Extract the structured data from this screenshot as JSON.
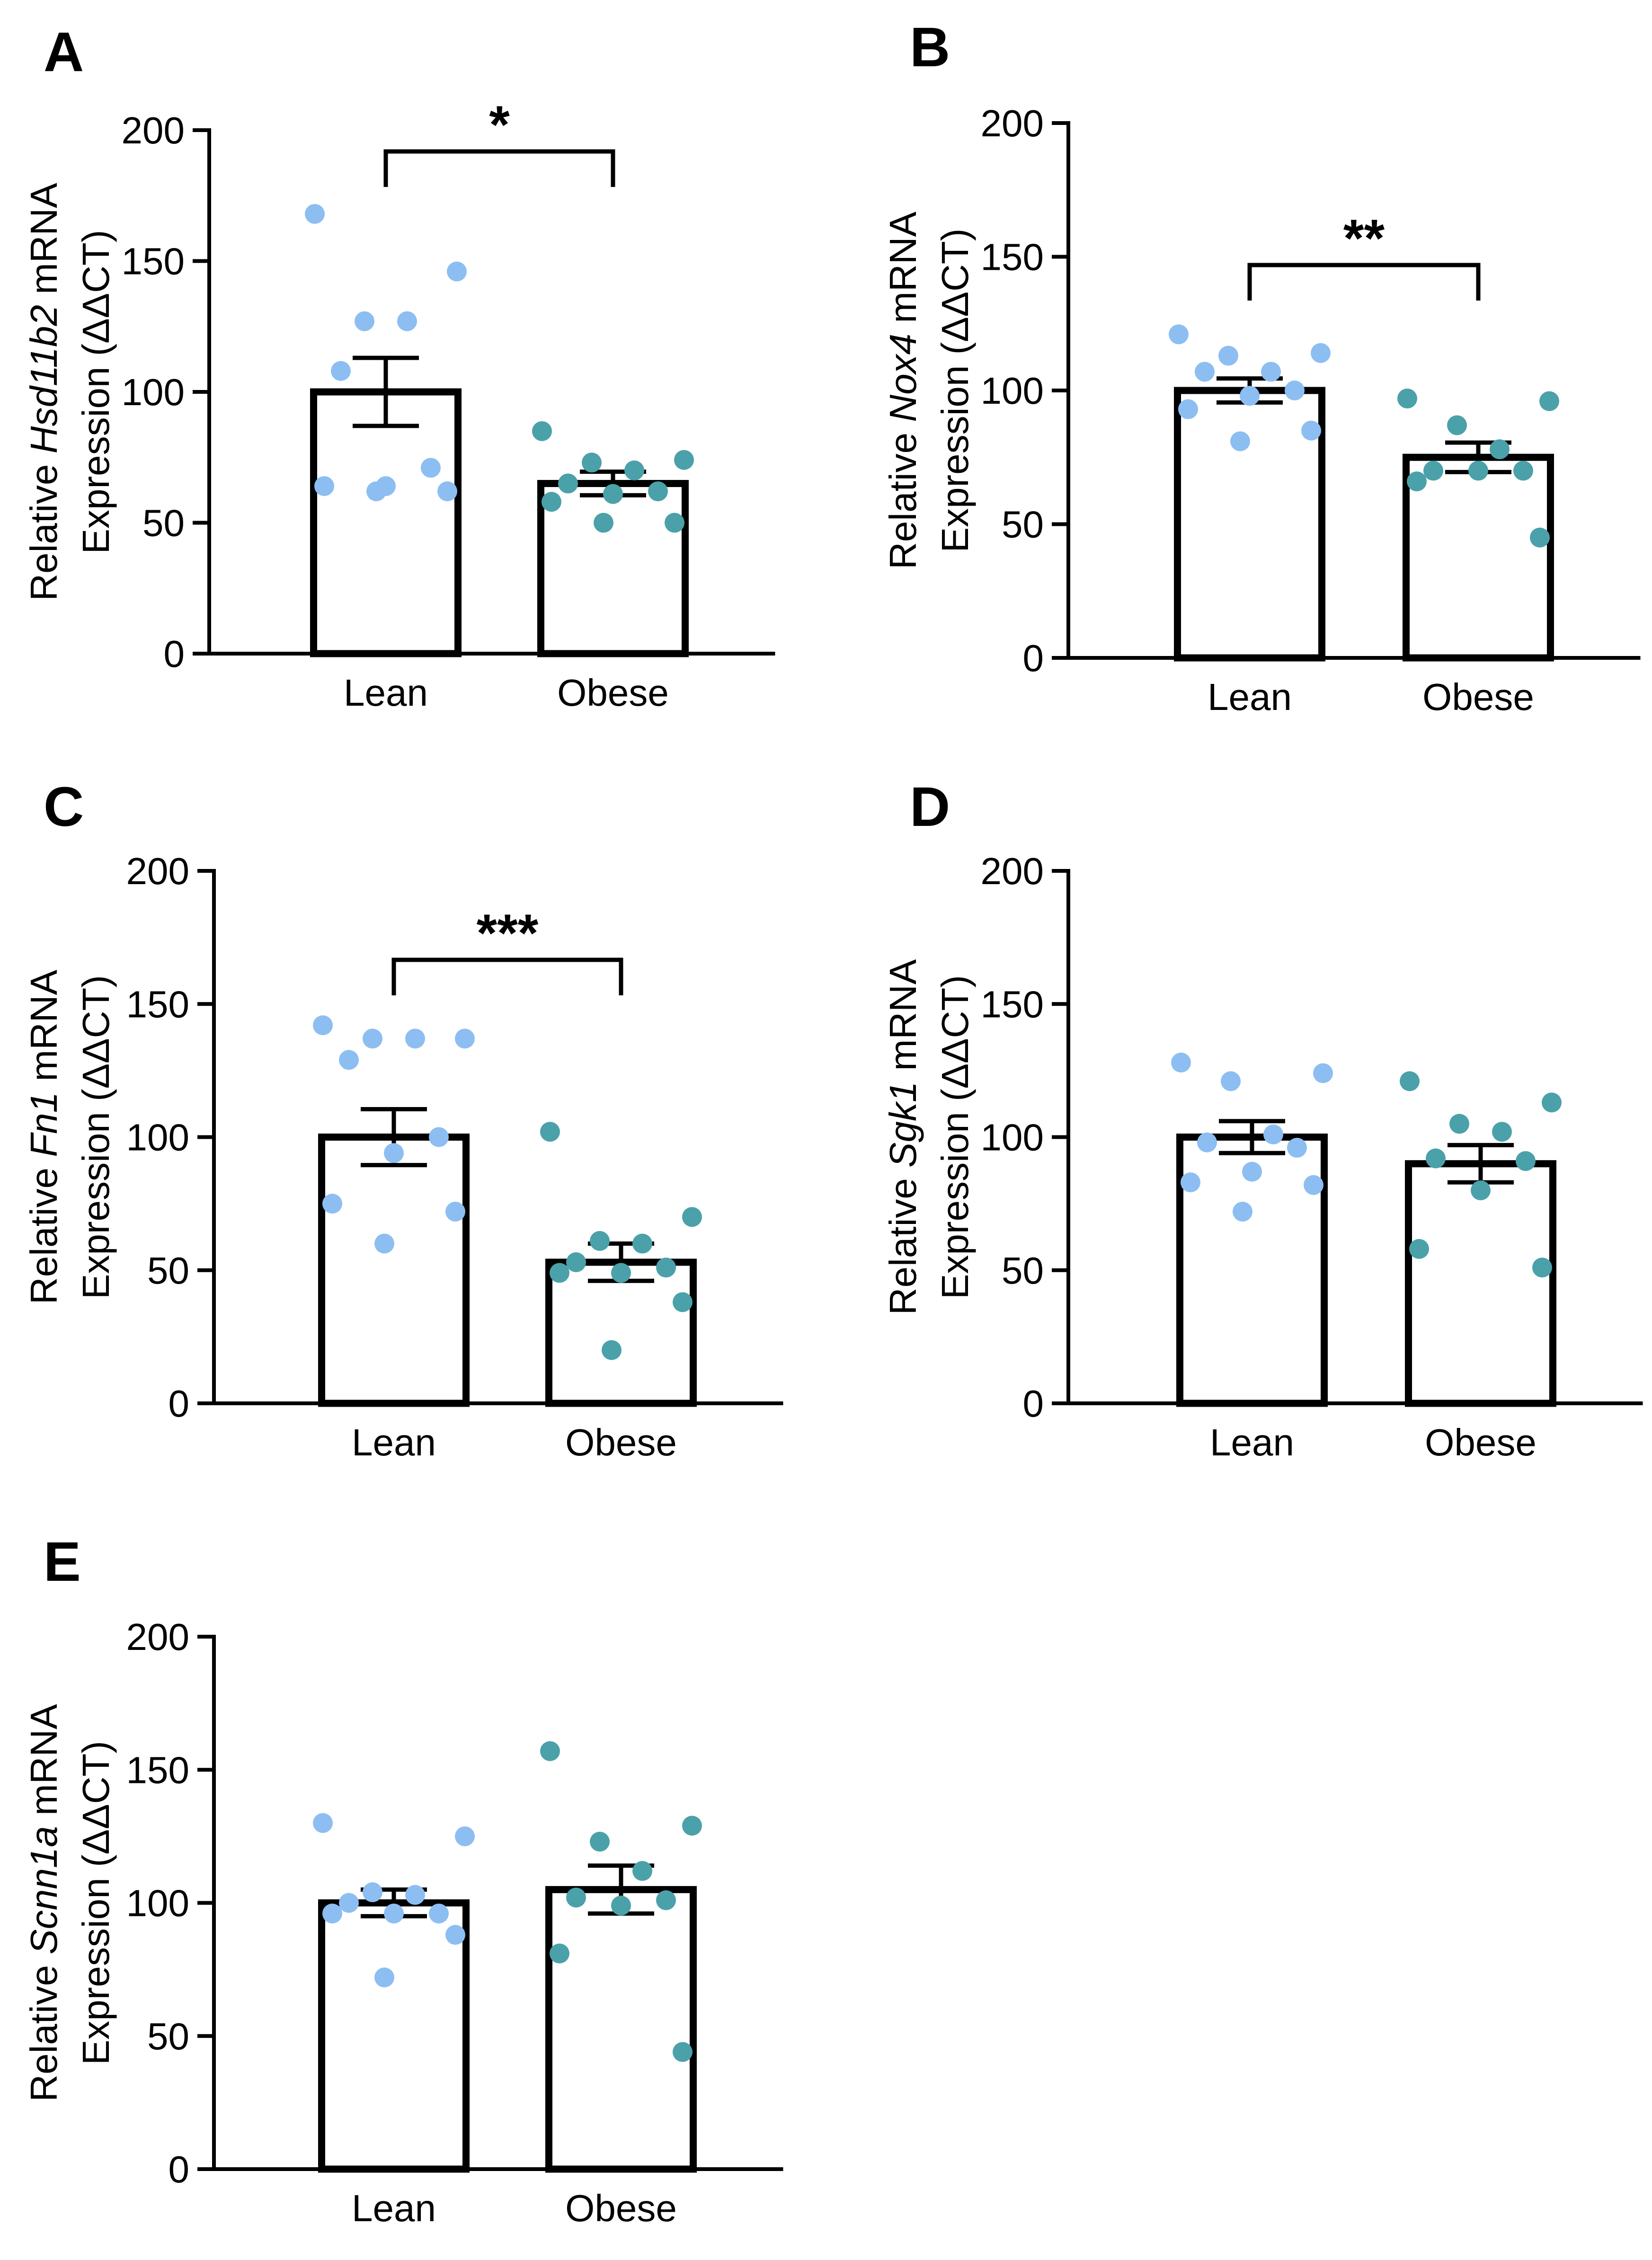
{
  "figure": {
    "colors": {
      "lean_dot": "#8dbef2",
      "obese_dot": "#4ba1a9",
      "bar_fill": "#ffffff",
      "stroke": "#000000"
    }
  },
  "chart_data": [
    {
      "panel": "A",
      "type": "bar",
      "ylabel": {
        "prefix": "Relative ",
        "gene": "Hsd11b2",
        "suffix": " mRNA",
        "line2": "Expression (ΔΔCT)"
      },
      "ylim": [
        0,
        200
      ],
      "yticks": [
        "0",
        "50",
        "100",
        "150",
        "200"
      ],
      "categories": [
        "Lean",
        "Obese"
      ],
      "means": [
        100,
        65
      ],
      "sem": [
        13,
        4.5
      ],
      "points": [
        [
          168,
          146,
          127,
          127,
          108,
          71,
          64,
          64,
          62,
          62
        ],
        [
          85,
          74,
          73,
          70,
          65,
          62,
          61,
          58,
          50,
          50
        ]
      ],
      "significance": "*"
    },
    {
      "panel": "B",
      "type": "bar",
      "ylabel": {
        "prefix": "Relative ",
        "gene": "Nox4",
        "suffix": " mRNA",
        "line2": "Expression (ΔΔCT)"
      },
      "ylim": [
        0,
        200
      ],
      "yticks": [
        "0",
        "50",
        "100",
        "150",
        "200"
      ],
      "categories": [
        "Lean",
        "Obese"
      ],
      "means": [
        100,
        75
      ],
      "sem": [
        4.5,
        5.5
      ],
      "points": [
        [
          121,
          114,
          113,
          107,
          107,
          100,
          98,
          93,
          85,
          81
        ],
        [
          97,
          96,
          87,
          78,
          70,
          70,
          70,
          66,
          45
        ]
      ],
      "significance": "**"
    },
    {
      "panel": "C",
      "type": "bar",
      "ylabel": {
        "prefix": "Relative ",
        "gene": "Fn1",
        "suffix": " mRNA",
        "line2": "Expression (ΔΔCT)"
      },
      "ylim": [
        0,
        200
      ],
      "yticks": [
        "0",
        "50",
        "100",
        "150",
        "200"
      ],
      "categories": [
        "Lean",
        "Obese"
      ],
      "means": [
        100,
        53
      ],
      "sem": [
        10.5,
        7
      ],
      "points": [
        [
          142,
          137,
          137,
          137,
          129,
          100,
          94,
          75,
          72,
          60
        ],
        [
          102,
          70,
          61,
          60,
          53,
          51,
          49,
          49,
          38,
          20
        ]
      ],
      "significance": "***"
    },
    {
      "panel": "D",
      "type": "bar",
      "ylabel": {
        "prefix": "Relative ",
        "gene": "Sgk1",
        "suffix": " mRNA",
        "line2": "Expression (ΔΔCT)"
      },
      "ylim": [
        0,
        200
      ],
      "yticks": [
        "0",
        "50",
        "100",
        "150",
        "200"
      ],
      "categories": [
        "Lean",
        "Obese"
      ],
      "means": [
        100,
        90
      ],
      "sem": [
        6,
        7
      ],
      "points": [
        [
          128,
          124,
          121,
          101,
          98,
          96,
          87,
          83,
          82,
          72
        ],
        [
          121,
          113,
          105,
          102,
          92,
          91,
          80,
          58,
          51
        ]
      ],
      "significance": ""
    },
    {
      "panel": "E",
      "type": "bar",
      "ylabel": {
        "prefix": "Relative ",
        "gene": "Scnn1a",
        "suffix": " mRNA",
        "line2": "Expression (ΔΔCT)"
      },
      "ylim": [
        0,
        200
      ],
      "yticks": [
        "0",
        "50",
        "100",
        "150",
        "200"
      ],
      "categories": [
        "Lean",
        "Obese"
      ],
      "means": [
        100,
        105
      ],
      "sem": [
        5,
        9
      ],
      "points": [
        [
          130,
          125,
          104,
          103,
          100,
          96,
          96,
          96,
          88,
          72
        ],
        [
          157,
          129,
          123,
          112,
          102,
          101,
          99,
          81,
          44
        ]
      ],
      "significance": ""
    }
  ]
}
